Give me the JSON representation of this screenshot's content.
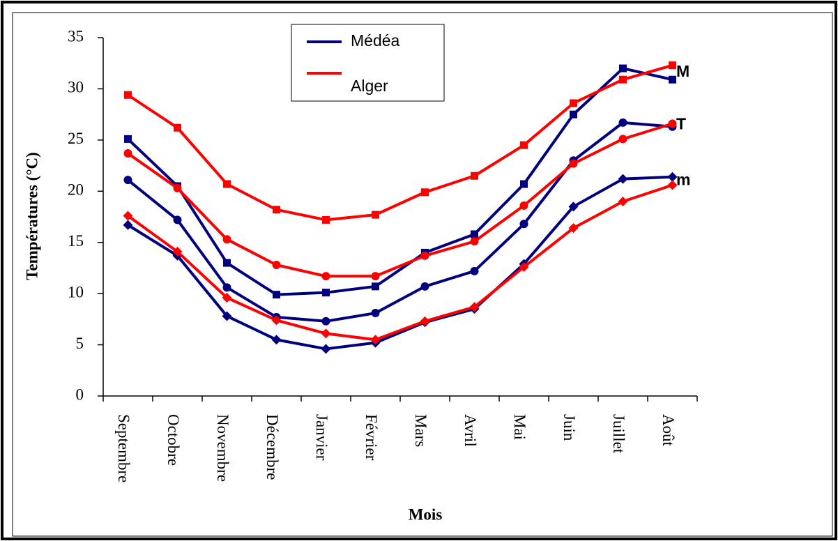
{
  "chart_data": {
    "type": "line",
    "y_label": "Températures (°C)",
    "x_label": "Mois",
    "categories": [
      "Septembre",
      "Octobre",
      "Novembre",
      "Décembre",
      "Janvier",
      "Février",
      "Mars",
      "Avril",
      "Mai",
      "Juin",
      "Juillet",
      "Août"
    ],
    "ylim": [
      0,
      35
    ],
    "yticks": [
      0,
      5,
      10,
      15,
      20,
      25,
      30,
      35
    ],
    "annotations": [
      "M",
      "T",
      "m"
    ],
    "series": [
      {
        "name": "Médéa",
        "color": "#00007f",
        "lines": [
          {
            "marker": "square",
            "values": [
              25.1,
              20.5,
              13.0,
              9.9,
              10.1,
              10.7,
              14.0,
              15.8,
              20.7,
              27.5,
              32.0,
              30.9
            ]
          },
          {
            "marker": "circle",
            "values": [
              21.1,
              17.2,
              10.6,
              7.7,
              7.3,
              8.1,
              10.7,
              12.2,
              16.8,
              23.0,
              26.7,
              26.3
            ]
          },
          {
            "marker": "diamond",
            "values": [
              16.7,
              13.7,
              7.8,
              5.5,
              4.6,
              5.2,
              7.2,
              8.5,
              12.9,
              18.5,
              21.2,
              21.4
            ]
          }
        ]
      },
      {
        "name": "Alger",
        "color": "#ff0000",
        "lines": [
          {
            "marker": "square",
            "values": [
              29.4,
              26.2,
              20.7,
              18.2,
              17.2,
              17.7,
              19.9,
              21.5,
              24.5,
              28.6,
              30.9,
              32.3
            ]
          },
          {
            "marker": "circle",
            "values": [
              23.7,
              20.3,
              15.3,
              12.8,
              11.7,
              11.7,
              13.7,
              15.1,
              18.6,
              22.7,
              25.1,
              26.6
            ]
          },
          {
            "marker": "diamond",
            "values": [
              17.6,
              14.1,
              9.6,
              7.4,
              6.1,
              5.5,
              7.3,
              8.7,
              12.6,
              16.4,
              19.0,
              20.6
            ]
          }
        ]
      }
    ]
  }
}
